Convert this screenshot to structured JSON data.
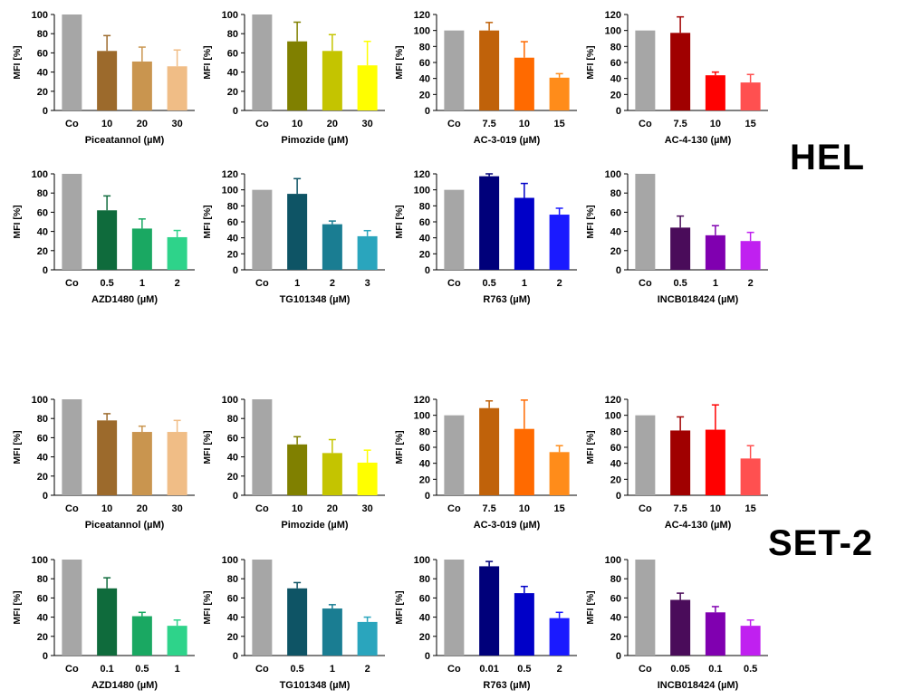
{
  "figure": {
    "cell_lines": [
      "HEL",
      "SET-2"
    ],
    "ylabel": "MFI [%]"
  },
  "chart_data": [
    {
      "type": "bar",
      "group": "HEL",
      "categories": [
        "Co",
        "10",
        "20",
        "30"
      ],
      "values": [
        100,
        62,
        51,
        46
      ],
      "errors": [
        0,
        16,
        15,
        17
      ],
      "xlabel": "Piceatannol (µM)",
      "ylabel": "MFI [%]",
      "ylim": [
        0,
        100
      ],
      "yticks": [
        0,
        20,
        40,
        60,
        80,
        100
      ],
      "colors": [
        "#a6a6a6",
        "#9c6a2c",
        "#c9954f",
        "#f0bd86"
      ]
    },
    {
      "type": "bar",
      "group": "HEL",
      "categories": [
        "Co",
        "10",
        "20",
        "30"
      ],
      "values": [
        100,
        72,
        62,
        47
      ],
      "errors": [
        0,
        20,
        17,
        25
      ],
      "xlabel": "Pimozide (µM)",
      "ylabel": "MFI [%]",
      "ylim": [
        0,
        100
      ],
      "yticks": [
        0,
        20,
        40,
        60,
        80,
        100
      ],
      "colors": [
        "#a6a6a6",
        "#808000",
        "#c4c400",
        "#ffff00"
      ]
    },
    {
      "type": "bar",
      "group": "HEL",
      "categories": [
        "Co",
        "7.5",
        "10",
        "15"
      ],
      "values": [
        100,
        100,
        66,
        41
      ],
      "errors": [
        0,
        10,
        20,
        5
      ],
      "xlabel": "AC-3-019 (µM)",
      "ylabel": "MFI [%]",
      "ylim": [
        0,
        120
      ],
      "yticks": [
        0,
        20,
        40,
        60,
        80,
        100,
        120
      ],
      "colors": [
        "#a6a6a6",
        "#c0620a",
        "#ff6a00",
        "#ff8c1a"
      ]
    },
    {
      "type": "bar",
      "group": "HEL",
      "categories": [
        "Co",
        "7.5",
        "10",
        "15"
      ],
      "values": [
        100,
        97,
        44,
        35
      ],
      "errors": [
        0,
        20,
        4,
        10
      ],
      "xlabel": "AC-4-130 (µM)",
      "ylabel": "MFI [%]",
      "ylim": [
        0,
        120
      ],
      "yticks": [
        0,
        20,
        40,
        60,
        80,
        100,
        120
      ],
      "colors": [
        "#a6a6a6",
        "#a00000",
        "#ff0000",
        "#ff5050"
      ]
    },
    {
      "type": "bar",
      "group": "HEL",
      "categories": [
        "Co",
        "0.5",
        "1",
        "2"
      ],
      "values": [
        100,
        62,
        43,
        34
      ],
      "errors": [
        0,
        15,
        10,
        7
      ],
      "xlabel": "AZD1480 (µM)",
      "ylabel": "MFI [%]",
      "ylim": [
        0,
        100
      ],
      "yticks": [
        0,
        20,
        40,
        60,
        80,
        100
      ],
      "colors": [
        "#a6a6a6",
        "#0f6b3c",
        "#1aa862",
        "#2ed38a"
      ]
    },
    {
      "type": "bar",
      "group": "HEL",
      "categories": [
        "Co",
        "1",
        "2",
        "3"
      ],
      "values": [
        100,
        95,
        57,
        42
      ],
      "errors": [
        0,
        19,
        4,
        7
      ],
      "xlabel": "TG101348 (µM)",
      "ylabel": "MFI [%]",
      "ylim": [
        0,
        120
      ],
      "yticks": [
        0,
        20,
        40,
        60,
        80,
        100,
        120
      ],
      "colors": [
        "#a6a6a6",
        "#0e5465",
        "#1a7d92",
        "#2aa5bd"
      ]
    },
    {
      "type": "bar",
      "group": "HEL",
      "categories": [
        "Co",
        "0.5",
        "1",
        "2"
      ],
      "values": [
        100,
        117,
        90,
        69
      ],
      "errors": [
        0,
        3,
        18,
        8
      ],
      "xlabel": "R763 (µM)",
      "ylabel": "MFI [%]",
      "ylim": [
        0,
        120
      ],
      "yticks": [
        0,
        20,
        40,
        60,
        80,
        100,
        120
      ],
      "colors": [
        "#a6a6a6",
        "#00007a",
        "#0000c8",
        "#1a1aff"
      ]
    },
    {
      "type": "bar",
      "group": "HEL",
      "categories": [
        "Co",
        "0.5",
        "1",
        "2"
      ],
      "values": [
        100,
        44,
        36,
        30
      ],
      "errors": [
        0,
        12,
        10,
        9
      ],
      "xlabel": "INCB018424 (µM)",
      "ylabel": "MFI [%]",
      "ylim": [
        0,
        100
      ],
      "yticks": [
        0,
        20,
        40,
        60,
        80,
        100
      ],
      "colors": [
        "#a6a6a6",
        "#4a0c5a",
        "#8000b0",
        "#c020f0"
      ]
    },
    {
      "type": "bar",
      "group": "SET-2",
      "categories": [
        "Co",
        "10",
        "20",
        "30"
      ],
      "values": [
        100,
        78,
        66,
        66
      ],
      "errors": [
        0,
        7,
        6,
        12
      ],
      "xlabel": "Piceatannol (µM)",
      "ylabel": "MFI [%]",
      "ylim": [
        0,
        100
      ],
      "yticks": [
        0,
        20,
        40,
        60,
        80,
        100
      ],
      "colors": [
        "#a6a6a6",
        "#9c6a2c",
        "#c9954f",
        "#f0bd86"
      ]
    },
    {
      "type": "bar",
      "group": "SET-2",
      "categories": [
        "Co",
        "10",
        "20",
        "30"
      ],
      "values": [
        100,
        53,
        44,
        34
      ],
      "errors": [
        0,
        8,
        14,
        13
      ],
      "xlabel": "Pimozide (µM)",
      "ylabel": "MFI [%]",
      "ylim": [
        0,
        100
      ],
      "yticks": [
        0,
        20,
        40,
        60,
        80,
        100
      ],
      "colors": [
        "#a6a6a6",
        "#808000",
        "#c4c400",
        "#ffff00"
      ]
    },
    {
      "type": "bar",
      "group": "SET-2",
      "categories": [
        "Co",
        "7.5",
        "10",
        "15"
      ],
      "values": [
        100,
        109,
        83,
        54
      ],
      "errors": [
        0,
        9,
        36,
        8
      ],
      "xlabel": "AC-3-019 (µM)",
      "ylabel": "MFI [%]",
      "ylim": [
        0,
        120
      ],
      "yticks": [
        0,
        20,
        40,
        60,
        80,
        100,
        120
      ],
      "colors": [
        "#a6a6a6",
        "#c0620a",
        "#ff6a00",
        "#ff8c1a"
      ]
    },
    {
      "type": "bar",
      "group": "SET-2",
      "categories": [
        "Co",
        "7.5",
        "10",
        "15"
      ],
      "values": [
        100,
        81,
        82,
        46
      ],
      "errors": [
        0,
        17,
        31,
        16
      ],
      "xlabel": "AC-4-130 (µM)",
      "ylabel": "MFI [%]",
      "ylim": [
        0,
        120
      ],
      "yticks": [
        0,
        20,
        40,
        60,
        80,
        100,
        120
      ],
      "colors": [
        "#a6a6a6",
        "#a00000",
        "#ff0000",
        "#ff5050"
      ]
    },
    {
      "type": "bar",
      "group": "SET-2",
      "categories": [
        "Co",
        "0.1",
        "0.5",
        "1"
      ],
      "values": [
        100,
        70,
        41,
        31
      ],
      "errors": [
        0,
        11,
        4,
        6
      ],
      "xlabel": "AZD1480 (µM)",
      "ylabel": "MFI [%]",
      "ylim": [
        0,
        100
      ],
      "yticks": [
        0,
        20,
        40,
        60,
        80,
        100
      ],
      "colors": [
        "#a6a6a6",
        "#0f6b3c",
        "#1aa862",
        "#2ed38a"
      ]
    },
    {
      "type": "bar",
      "group": "SET-2",
      "categories": [
        "Co",
        "0.5",
        "1",
        "2"
      ],
      "values": [
        100,
        70,
        49,
        35
      ],
      "errors": [
        0,
        6,
        4,
        5
      ],
      "xlabel": "TG101348 (µM)",
      "ylabel": "MFI [%]",
      "ylim": [
        0,
        100
      ],
      "yticks": [
        0,
        20,
        40,
        60,
        80,
        100
      ],
      "colors": [
        "#a6a6a6",
        "#0e5465",
        "#1a7d92",
        "#2aa5bd"
      ]
    },
    {
      "type": "bar",
      "group": "SET-2",
      "categories": [
        "Co",
        "0.01",
        "0.5",
        "2"
      ],
      "values": [
        100,
        93,
        65,
        39
      ],
      "errors": [
        0,
        5,
        7,
        6
      ],
      "xlabel": "R763 (µM)",
      "ylabel": "MFI [%]",
      "ylim": [
        0,
        100
      ],
      "yticks": [
        0,
        20,
        40,
        60,
        80,
        100
      ],
      "colors": [
        "#a6a6a6",
        "#00007a",
        "#0000c8",
        "#1a1aff"
      ]
    },
    {
      "type": "bar",
      "group": "SET-2",
      "categories": [
        "Co",
        "0.05",
        "0.1",
        "0.5"
      ],
      "values": [
        100,
        58,
        45,
        31
      ],
      "errors": [
        0,
        7,
        6,
        6
      ],
      "xlabel": "INCB018424 (µM)",
      "ylabel": "MFI [%]",
      "ylim": [
        0,
        100
      ],
      "yticks": [
        0,
        20,
        40,
        60,
        80,
        100
      ],
      "colors": [
        "#a6a6a6",
        "#4a0c5a",
        "#8000b0",
        "#c020f0"
      ]
    }
  ]
}
